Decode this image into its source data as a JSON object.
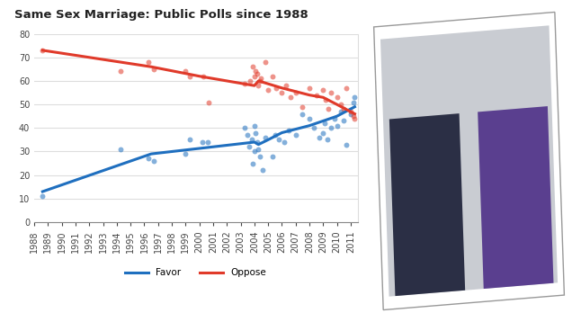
{
  "chart_data": {
    "type": "scatter",
    "title": "Same Sex Marriage: Public Polls since 1988",
    "xlim": [
      1988,
      2011.5
    ],
    "xticks": [
      1988,
      1989,
      1990,
      1991,
      1992,
      1993,
      1994,
      1995,
      1996,
      1997,
      1998,
      1999,
      2000,
      2001,
      2002,
      2003,
      2004,
      2005,
      2006,
      2007,
      2008,
      2009,
      2010,
      2011
    ],
    "ylim": [
      0,
      80
    ],
    "yticks": [
      0,
      10,
      20,
      30,
      40,
      50,
      60,
      70,
      80
    ],
    "grid": true,
    "legend": "bottom",
    "series": [
      {
        "name": "Favor",
        "color": "#1f6fbf",
        "marker": "circle",
        "line_style": "solid",
        "x": [
          1988.6,
          1994.3,
          1996.3,
          1996.7,
          1999,
          1999.3,
          2000.2,
          2000.6,
          2003.3,
          2003.5,
          2003.6,
          2003.8,
          2003.9,
          2004,
          2004,
          2004.1,
          2004.2,
          2004.3,
          2004.4,
          2004.6,
          2004.8,
          2005.3,
          2005.5,
          2005.8,
          2006.2,
          2006.5,
          2007,
          2007.5,
          2008,
          2008.3,
          2008.7,
          2009,
          2009.1,
          2009.3,
          2009.6,
          2009.8,
          2010,
          2010.3,
          2010.5,
          2010.7,
          2011,
          2011.2,
          2011.3
        ],
        "values": [
          11,
          31,
          27,
          26,
          29,
          35,
          34,
          34,
          40,
          37,
          32,
          35,
          25,
          41,
          30,
          38,
          34,
          31,
          28,
          22,
          36,
          28,
          37,
          35,
          34,
          39,
          37,
          46,
          44,
          40,
          36,
          38,
          42,
          35,
          40,
          44,
          41,
          47,
          43,
          33,
          46,
          51,
          53
        ],
        "trend_x": [
          1988.6,
          1996.5,
          2004,
          2004.3,
          2005,
          2006,
          2008,
          2010,
          2011.3
        ],
        "trend_values": [
          13,
          29,
          34,
          33,
          35,
          38,
          41,
          45,
          49
        ]
      },
      {
        "name": "Oppose",
        "color": "#e03a2a",
        "marker": "circle",
        "line_style": "solid",
        "x": [
          1988.6,
          1994.3,
          1996.3,
          1996.7,
          1999,
          1999.3,
          2000.3,
          2000.7,
          2003.3,
          2003.7,
          2003.9,
          2004,
          2004.1,
          2004.2,
          2004.3,
          2004.4,
          2004.5,
          2004.8,
          2005,
          2005.3,
          2005.6,
          2006,
          2006.3,
          2006.6,
          2007,
          2007.5,
          2008,
          2008.5,
          2009,
          2009.2,
          2009.4,
          2009.6,
          2010,
          2010.3,
          2010.5,
          2010.7,
          2011,
          2011.2,
          2011.3
        ],
        "values": [
          73,
          64,
          68,
          65,
          64,
          62,
          62,
          51,
          59,
          60,
          66,
          62,
          64,
          63,
          58,
          60,
          61,
          68,
          56,
          62,
          57,
          55,
          58,
          53,
          55,
          49,
          57,
          54,
          56,
          52,
          48,
          55,
          53,
          50,
          48,
          57,
          47,
          45,
          44
        ],
        "trend_x": [
          1988.6,
          1996.5,
          2000,
          2004,
          2004.3,
          2006,
          2008,
          2009,
          2010,
          2011.3
        ],
        "trend_values": [
          73,
          66,
          62,
          58,
          60,
          57,
          54,
          53,
          50,
          46
        ]
      }
    ]
  }
}
